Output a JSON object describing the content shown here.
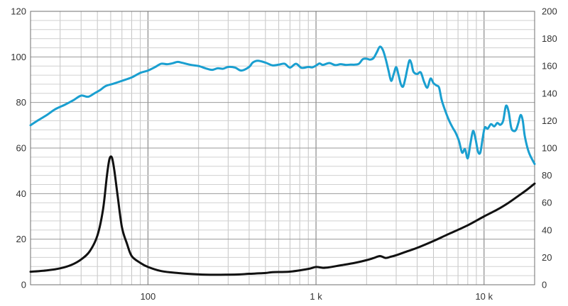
{
  "chart_data": {
    "type": "line",
    "title": "",
    "xlabel": "",
    "ylabel": "",
    "x_scale": "log",
    "xlim": [
      20,
      20000
    ],
    "ylim_left": [
      0,
      120
    ],
    "ylim_right": [
      0,
      200
    ],
    "grid": true,
    "legend": "none",
    "x_tick_labels": [
      {
        "value": 100,
        "label": "100"
      },
      {
        "value": 1000,
        "label": "1 k"
      },
      {
        "value": 10000,
        "label": "10 k"
      }
    ],
    "left_ticks": [
      0,
      20,
      40,
      60,
      80,
      100,
      120
    ],
    "right_ticks": [
      0,
      20,
      40,
      60,
      80,
      100,
      120,
      140,
      160,
      180,
      200
    ],
    "series": [
      {
        "axis": "left",
        "color": "#1a9fd0",
        "points": [
          [
            20,
            70
          ],
          [
            22,
            72
          ],
          [
            25,
            74.5
          ],
          [
            28,
            77
          ],
          [
            32,
            79
          ],
          [
            36,
            81
          ],
          [
            40,
            83
          ],
          [
            44,
            82.5
          ],
          [
            48,
            84
          ],
          [
            52,
            85.5
          ],
          [
            56,
            87.2
          ],
          [
            62,
            88.2
          ],
          [
            70,
            89.5
          ],
          [
            80,
            91
          ],
          [
            90,
            93
          ],
          [
            100,
            94
          ],
          [
            110,
            95.5
          ],
          [
            120,
            97
          ],
          [
            130,
            96.8
          ],
          [
            140,
            97.2
          ],
          [
            150,
            97.8
          ],
          [
            160,
            97.4
          ],
          [
            180,
            96.5
          ],
          [
            200,
            96
          ],
          [
            220,
            95
          ],
          [
            240,
            94.3
          ],
          [
            260,
            95
          ],
          [
            280,
            94.8
          ],
          [
            300,
            95.6
          ],
          [
            330,
            95.3
          ],
          [
            360,
            94
          ],
          [
            400,
            95.6
          ],
          [
            420,
            97.5
          ],
          [
            450,
            98.3
          ],
          [
            500,
            97.5
          ],
          [
            550,
            96.3
          ],
          [
            600,
            96.6
          ],
          [
            650,
            97
          ],
          [
            700,
            95.3
          ],
          [
            760,
            97
          ],
          [
            820,
            95.2
          ],
          [
            900,
            95.6
          ],
          [
            950,
            95.4
          ],
          [
            1000,
            96.2
          ],
          [
            1050,
            97.1
          ],
          [
            1100,
            96.5
          ],
          [
            1200,
            97.3
          ],
          [
            1300,
            96.4
          ],
          [
            1400,
            96.8
          ],
          [
            1500,
            96.5
          ],
          [
            1600,
            96.6
          ],
          [
            1700,
            96.6
          ],
          [
            1800,
            97
          ],
          [
            1900,
            99
          ],
          [
            2000,
            99.2
          ],
          [
            2100,
            98.8
          ],
          [
            2200,
            99.5
          ],
          [
            2300,
            102
          ],
          [
            2400,
            104.5
          ],
          [
            2500,
            103
          ],
          [
            2600,
            99
          ],
          [
            2700,
            94
          ],
          [
            2800,
            89.5
          ],
          [
            2900,
            92.5
          ],
          [
            3000,
            95.5
          ],
          [
            3100,
            92
          ],
          [
            3200,
            88
          ],
          [
            3300,
            87
          ],
          [
            3400,
            90.5
          ],
          [
            3500,
            95
          ],
          [
            3600,
            98.5
          ],
          [
            3700,
            97
          ],
          [
            3800,
            93.5
          ],
          [
            4000,
            92.5
          ],
          [
            4200,
            93.2
          ],
          [
            4400,
            89
          ],
          [
            4600,
            86.5
          ],
          [
            4800,
            90.5
          ],
          [
            5000,
            88.5
          ],
          [
            5200,
            87.5
          ],
          [
            5400,
            86.5
          ],
          [
            5600,
            81
          ],
          [
            5900,
            76
          ],
          [
            6200,
            72
          ],
          [
            6500,
            69
          ],
          [
            6800,
            66.5
          ],
          [
            7100,
            63
          ],
          [
            7400,
            58
          ],
          [
            7700,
            59.5
          ],
          [
            8000,
            55.5
          ],
          [
            8300,
            62
          ],
          [
            8600,
            67.5
          ],
          [
            8900,
            64
          ],
          [
            9200,
            58.5
          ],
          [
            9500,
            58
          ],
          [
            9800,
            64
          ],
          [
            10100,
            69
          ],
          [
            10500,
            68.5
          ],
          [
            11000,
            70.5
          ],
          [
            11500,
            69.5
          ],
          [
            12000,
            71
          ],
          [
            12500,
            70.2
          ],
          [
            13000,
            72
          ],
          [
            13500,
            78.5
          ],
          [
            14000,
            76
          ],
          [
            14500,
            69
          ],
          [
            15000,
            67.5
          ],
          [
            15500,
            68
          ],
          [
            16000,
            71
          ],
          [
            16500,
            74.5
          ],
          [
            17000,
            72
          ],
          [
            17500,
            65
          ],
          [
            18500,
            58
          ],
          [
            20000,
            53
          ]
        ]
      },
      {
        "axis": "right",
        "color": "#111111",
        "points": [
          [
            20,
            9.5
          ],
          [
            25,
            10.5
          ],
          [
            30,
            12
          ],
          [
            35,
            14.5
          ],
          [
            40,
            18.5
          ],
          [
            45,
            24.5
          ],
          [
            50,
            36
          ],
          [
            54,
            55
          ],
          [
            57,
            80
          ],
          [
            59,
            92
          ],
          [
            61,
            93
          ],
          [
            63,
            84
          ],
          [
            66,
            65
          ],
          [
            70,
            42
          ],
          [
            75,
            30
          ],
          [
            80,
            21
          ],
          [
            90,
            16
          ],
          [
            100,
            13
          ],
          [
            120,
            10
          ],
          [
            150,
            8.6
          ],
          [
            200,
            7.6
          ],
          [
            250,
            7.3
          ],
          [
            300,
            7.4
          ],
          [
            350,
            7.6
          ],
          [
            400,
            8
          ],
          [
            500,
            8.6
          ],
          [
            550,
            9.2
          ],
          [
            700,
            9.6
          ],
          [
            900,
            11.6
          ],
          [
            1000,
            13
          ],
          [
            1100,
            12.4
          ],
          [
            1200,
            12.8
          ],
          [
            1400,
            14.2
          ],
          [
            1700,
            16
          ],
          [
            2000,
            18
          ],
          [
            2200,
            19.5
          ],
          [
            2400,
            21
          ],
          [
            2600,
            19.6
          ],
          [
            2800,
            20.6
          ],
          [
            3000,
            21.6
          ],
          [
            3500,
            24.5
          ],
          [
            4000,
            27
          ],
          [
            5000,
            32
          ],
          [
            6000,
            36.5
          ],
          [
            8000,
            43.5
          ],
          [
            10000,
            50
          ],
          [
            12000,
            55
          ],
          [
            14000,
            60
          ],
          [
            16000,
            65
          ],
          [
            18000,
            69.5
          ],
          [
            20000,
            74
          ]
        ]
      }
    ]
  }
}
